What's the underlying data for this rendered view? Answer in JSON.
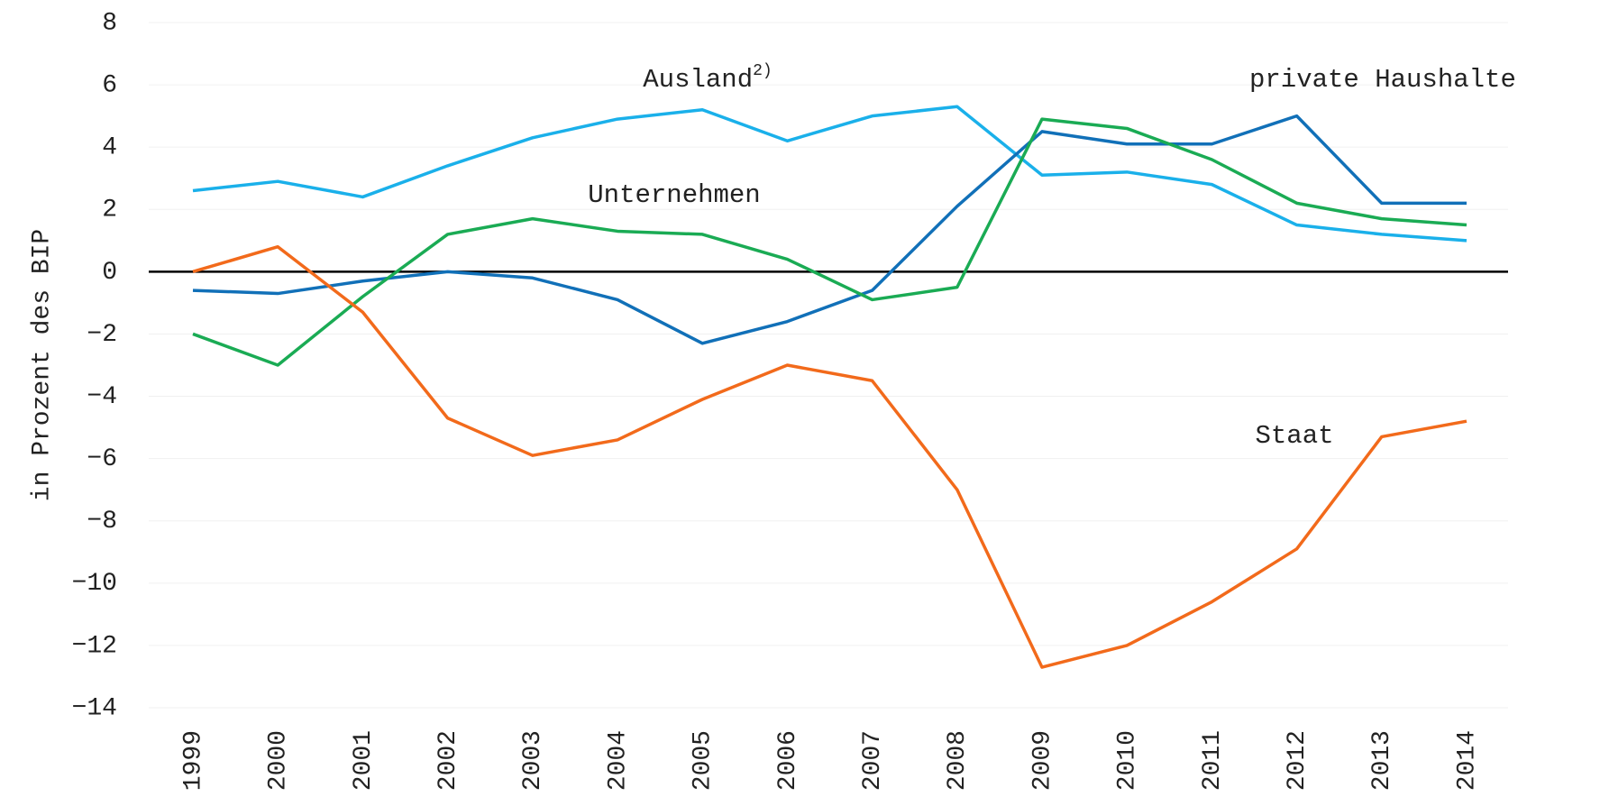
{
  "chart_data": {
    "type": "line",
    "y_label": "in Prozent des BIP",
    "x": [
      "1999",
      "2000",
      "2001",
      "2002",
      "2003",
      "2004",
      "2005",
      "2006",
      "2007",
      "2008",
      "2009",
      "2010",
      "2011",
      "2012",
      "2013",
      "2014"
    ],
    "ylim": [
      -14,
      8
    ],
    "yticks": [
      {
        "value": -14,
        "label": "−14"
      },
      {
        "value": -12,
        "label": "−12"
      },
      {
        "value": -10,
        "label": "−10"
      },
      {
        "value": -8,
        "label": "−8"
      },
      {
        "value": -6,
        "label": "−6"
      },
      {
        "value": -4,
        "label": "−4"
      },
      {
        "value": -2,
        "label": "−2"
      },
      0,
      2,
      4,
      6,
      8
    ],
    "grid": true,
    "series": [
      {
        "name": "Ausland",
        "footnote": "2)",
        "color": "#1ab0ea",
        "values": [
          2.6,
          2.9,
          2.4,
          3.4,
          4.3,
          4.9,
          5.2,
          4.2,
          5.0,
          5.3,
          3.1,
          3.2,
          2.8,
          1.5,
          1.2,
          1.0
        ]
      },
      {
        "name": "private Haushalte",
        "color": "#1170b8",
        "values": [
          -0.6,
          -0.7,
          -0.3,
          0.0,
          -0.2,
          -0.9,
          -2.3,
          -1.6,
          -0.6,
          2.1,
          4.5,
          4.1,
          4.1,
          5.0,
          2.2,
          2.2
        ]
      },
      {
        "name": "Unternehmen",
        "color": "#1aab54",
        "values": [
          -2.0,
          -3.0,
          -0.8,
          1.2,
          1.7,
          1.3,
          1.2,
          0.4,
          -0.9,
          -0.5,
          4.9,
          4.6,
          3.6,
          2.2,
          1.7,
          1.5
        ]
      },
      {
        "name": "Staat",
        "color": "#f26a1b",
        "values": [
          0.0,
          0.8,
          -1.3,
          -4.7,
          -5.9,
          -5.4,
          -4.1,
          -3.0,
          -3.5,
          -7.0,
          -12.7,
          -12.0,
          -10.6,
          -8.9,
          -5.3,
          -4.8
        ]
      }
    ]
  }
}
